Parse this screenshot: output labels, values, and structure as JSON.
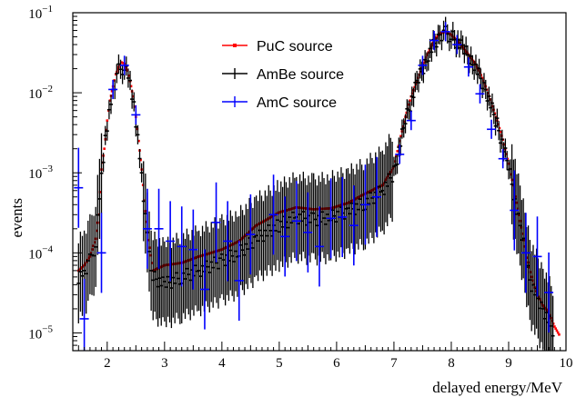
{
  "chart_data": {
    "type": "scatter",
    "title": "",
    "xlabel": "delayed energy/MeV",
    "ylabel": "events",
    "xlim": [
      1.4,
      10.0
    ],
    "ylim": [
      6e-06,
      0.1
    ],
    "yscale": "log",
    "grid": false,
    "legend_position": "top-center",
    "x_ticks": [
      "2",
      "3",
      "4",
      "5",
      "6",
      "7",
      "8",
      "9",
      "10"
    ],
    "y_ticks": [
      {
        "base": "10",
        "exp": "−5"
      },
      {
        "base": "10",
        "exp": "−4"
      },
      {
        "base": "10",
        "exp": "−3"
      },
      {
        "base": "10",
        "exp": "−2"
      },
      {
        "base": "10",
        "exp": "−1"
      }
    ],
    "series": [
      {
        "name": "PuC source",
        "color": "#ff0000",
        "style": "dots",
        "points": [
          [
            1.5,
            6e-05
          ],
          [
            1.6,
            7e-05
          ],
          [
            1.7,
            9e-05
          ],
          [
            1.8,
            0.00015
          ],
          [
            1.85,
            0.0003
          ],
          [
            1.9,
            0.0011
          ],
          [
            1.95,
            0.002
          ],
          [
            2.0,
            0.0045
          ],
          [
            2.05,
            0.008
          ],
          [
            2.1,
            0.012
          ],
          [
            2.15,
            0.017
          ],
          [
            2.2,
            0.021
          ],
          [
            2.25,
            0.024
          ],
          [
            2.3,
            0.023
          ],
          [
            2.35,
            0.019
          ],
          [
            2.4,
            0.014
          ],
          [
            2.45,
            0.009
          ],
          [
            2.5,
            0.005
          ],
          [
            2.55,
            0.0025
          ],
          [
            2.6,
            0.0011
          ],
          [
            2.65,
            0.00045
          ],
          [
            2.7,
            0.00018
          ],
          [
            2.8,
            6e-05
          ],
          [
            3.0,
            7e-05
          ],
          [
            3.3,
            7.5e-05
          ],
          [
            3.6,
            9e-05
          ],
          [
            4.0,
            0.00011
          ],
          [
            4.3,
            0.00014
          ],
          [
            4.6,
            0.00022
          ],
          [
            5.0,
            0.00032
          ],
          [
            5.3,
            0.00037
          ],
          [
            5.6,
            0.00035
          ],
          [
            5.9,
            0.00036
          ],
          [
            6.2,
            0.00042
          ],
          [
            6.5,
            0.00055
          ],
          [
            6.8,
            0.0007
          ],
          [
            7.0,
            0.0012
          ],
          [
            7.1,
            0.0025
          ],
          [
            7.2,
            0.005
          ],
          [
            7.3,
            0.009
          ],
          [
            7.4,
            0.014
          ],
          [
            7.5,
            0.022
          ],
          [
            7.6,
            0.032
          ],
          [
            7.7,
            0.045
          ],
          [
            7.8,
            0.055
          ],
          [
            7.9,
            0.058
          ],
          [
            8.0,
            0.053
          ],
          [
            8.1,
            0.045
          ],
          [
            8.2,
            0.037
          ],
          [
            8.3,
            0.03
          ],
          [
            8.4,
            0.024
          ],
          [
            8.5,
            0.018
          ],
          [
            8.6,
            0.012
          ],
          [
            8.7,
            0.0075
          ],
          [
            8.8,
            0.0045
          ],
          [
            8.9,
            0.0026
          ],
          [
            9.0,
            0.0013
          ],
          [
            9.1,
            0.0006
          ],
          [
            9.2,
            0.00025
          ],
          [
            9.3,
            0.0001
          ],
          [
            9.4,
            5e-05
          ],
          [
            9.5,
            3e-05
          ],
          [
            9.6,
            2.2e-05
          ],
          [
            9.7,
            1.8e-05
          ],
          [
            9.8,
            1.2e-05
          ],
          [
            9.9,
            9e-06
          ]
        ]
      },
      {
        "name": "AmBe source",
        "color": "#000000",
        "style": "errorbars",
        "points": [
          [
            1.5,
            5e-05
          ],
          [
            1.6,
            6e-05
          ],
          [
            1.7,
            8e-05
          ],
          [
            1.8,
            0.00013
          ],
          [
            1.9,
            0.0009
          ],
          [
            2.0,
            0.004
          ],
          [
            2.1,
            0.011
          ],
          [
            2.2,
            0.019
          ],
          [
            2.3,
            0.021
          ],
          [
            2.4,
            0.013
          ],
          [
            2.5,
            0.0045
          ],
          [
            2.6,
            0.001
          ],
          [
            2.7,
            0.00015
          ],
          [
            2.8,
            5e-05
          ],
          [
            3.0,
            4e-05
          ],
          [
            3.3,
            5e-05
          ],
          [
            3.6,
            6e-05
          ],
          [
            4.0,
            8e-05
          ],
          [
            4.3,
            0.0001
          ],
          [
            4.6,
            0.00015
          ],
          [
            5.0,
            0.00022
          ],
          [
            5.3,
            0.00028
          ],
          [
            5.6,
            0.00026
          ],
          [
            5.9,
            0.00028
          ],
          [
            6.2,
            0.00033
          ],
          [
            6.5,
            0.00042
          ],
          [
            6.8,
            0.0006
          ],
          [
            7.0,
            0.001
          ],
          [
            7.2,
            0.0045
          ],
          [
            7.4,
            0.013
          ],
          [
            7.6,
            0.03
          ],
          [
            7.8,
            0.053
          ],
          [
            7.9,
            0.056
          ],
          [
            8.0,
            0.051
          ],
          [
            8.2,
            0.036
          ],
          [
            8.4,
            0.023
          ],
          [
            8.6,
            0.011
          ],
          [
            8.8,
            0.004
          ],
          [
            9.0,
            0.0012
          ],
          [
            9.2,
            0.0002
          ],
          [
            9.4,
            4e-05
          ],
          [
            9.6,
            2e-05
          ],
          [
            9.8,
            1e-05
          ]
        ]
      },
      {
        "name": "AmC source",
        "color": "#0000ff",
        "style": "errorbars",
        "points": [
          [
            1.5,
            0.00065
          ],
          [
            1.6,
            1.5e-05
          ],
          [
            1.9,
            0.0001
          ],
          [
            2.1,
            0.011
          ],
          [
            2.3,
            0.022
          ],
          [
            2.5,
            0.0053
          ],
          [
            2.7,
            0.0002
          ],
          [
            2.9,
            0.0002
          ],
          [
            3.1,
            0.00014
          ],
          [
            3.3,
            0.00012
          ],
          [
            3.5,
            0.00011
          ],
          [
            3.7,
            3.5e-05
          ],
          [
            3.9,
            0.00024
          ],
          [
            4.1,
            0.00014
          ],
          [
            4.3,
            4.5e-05
          ],
          [
            4.5,
            0.00017
          ],
          [
            4.9,
            0.0003
          ],
          [
            5.1,
            0.00016
          ],
          [
            5.3,
            0.00025
          ],
          [
            5.5,
            0.00018
          ],
          [
            5.7,
            0.00012
          ],
          [
            5.9,
            0.00027
          ],
          [
            6.1,
            0.00028
          ],
          [
            6.3,
            0.00022
          ],
          [
            6.5,
            0.0004
          ],
          [
            6.7,
            0.0005
          ],
          [
            7.1,
            0.0017
          ],
          [
            7.3,
            0.0045
          ],
          [
            7.5,
            0.022
          ],
          [
            7.7,
            0.045
          ],
          [
            7.9,
            0.058
          ],
          [
            8.1,
            0.04
          ],
          [
            8.3,
            0.021
          ],
          [
            8.5,
            0.0097
          ],
          [
            8.7,
            0.0035
          ],
          [
            8.9,
            0.0015
          ],
          [
            9.1,
            0.00034
          ],
          [
            9.3,
            0.0001
          ],
          [
            9.5,
            9e-05
          ],
          [
            9.7,
            3.2e-05
          ]
        ]
      }
    ]
  }
}
